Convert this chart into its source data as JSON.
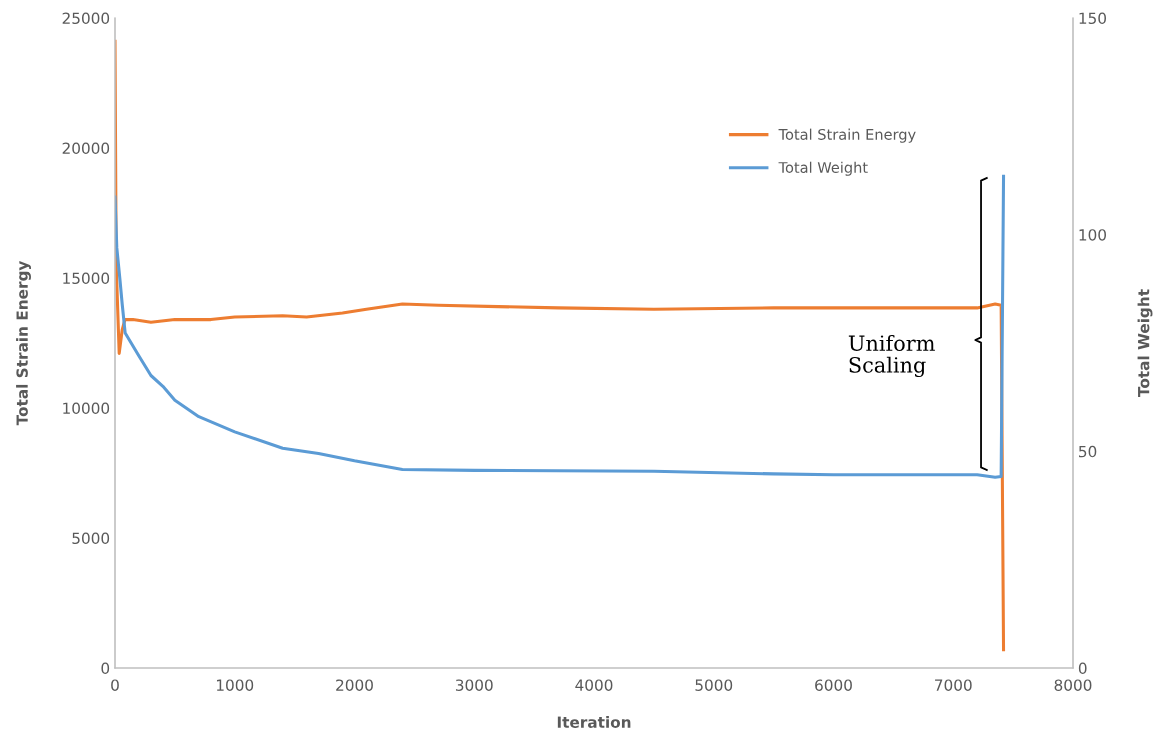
{
  "chart_data": {
    "type": "line",
    "xlabel": "Iteration",
    "ylabel": "Total Strain Energy",
    "y2label": "Total Weight",
    "xlim": [
      0,
      8000
    ],
    "xticks": [
      0,
      1000,
      2000,
      3000,
      4000,
      5000,
      6000,
      7000,
      8000
    ],
    "ylim": [
      0,
      25000
    ],
    "yticks": [
      0,
      5000,
      10000,
      15000,
      20000,
      25000
    ],
    "y2lim": [
      0,
      150
    ],
    "y2ticks": [
      0,
      50,
      100,
      150
    ],
    "grid": false,
    "legend": "top right",
    "marker": "none",
    "line_style": "solid",
    "annotations": [
      "Uniform Scaling"
    ],
    "series": [
      {
        "name": "Total Strain Energy",
        "color": "#ed7d31",
        "x": [
          0,
          10,
          35,
          60,
          83,
          150,
          300,
          500,
          800,
          1000,
          1400,
          1600,
          1900,
          2100,
          2400,
          2700,
          3200,
          3700,
          4500,
          5500,
          6500,
          7200,
          7350,
          7400,
          7420
        ],
        "values": [
          24100,
          15500,
          12100,
          13000,
          13400,
          13400,
          13300,
          13400,
          13400,
          13500,
          13550,
          13500,
          13650,
          13800,
          14000,
          13950,
          13900,
          13850,
          13800,
          13850,
          13850,
          13850,
          14000,
          13950,
          700
        ]
      },
      {
        "name": "Total Weight",
        "color": "#5b9bd5",
        "axis": "y2",
        "x": [
          0,
          15,
          40,
          60,
          85,
          200,
          300,
          400,
          500,
          700,
          1000,
          1400,
          1700,
          2000,
          2400,
          3000,
          4500,
          5500,
          6000,
          7200,
          7350,
          7400,
          7420
        ],
        "values": [
          108.7,
          97,
          90,
          84,
          77.3,
          72,
          67.5,
          65,
          61.8,
          58,
          54.5,
          50.7,
          49.5,
          47.8,
          45.8,
          45.6,
          45.4,
          44.8,
          44.6,
          44.6,
          44.0,
          44.2,
          113.5
        ]
      }
    ]
  }
}
